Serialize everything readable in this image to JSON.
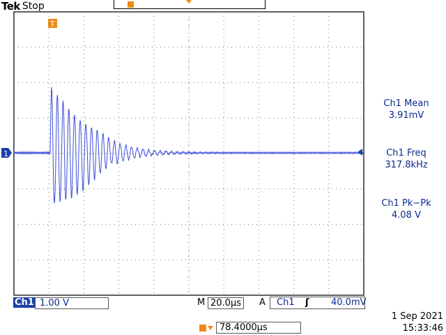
{
  "header": {
    "brand": "Tek",
    "state": "Stop"
  },
  "markers": {
    "channel_marker": "1",
    "trigger_marker_icon": "trigger-position-icon"
  },
  "measurements": [
    {
      "label": "Ch1 Mean",
      "value": "3.91mV"
    },
    {
      "label": "Ch1 Freq",
      "value": "317.8kHz"
    },
    {
      "label": "Ch1 Pk−Pk",
      "value": "4.08 V"
    }
  ],
  "status": {
    "channel": "Ch1",
    "vertical_scale": "1.00 V",
    "time_mode": "M",
    "time_scale": "20.0µs",
    "trigger_mode": "A",
    "trigger_source": "Ch1",
    "trigger_edge": "ʃ",
    "trigger_level": "40.0mV",
    "delay": "78.4000µs"
  },
  "datetime": {
    "date": "1 Sep  2021",
    "time": "15:33:46"
  },
  "colors": {
    "trace": "#3b4fd8",
    "orange": "#f08a16",
    "blue_text": "#0a2a8a"
  }
}
